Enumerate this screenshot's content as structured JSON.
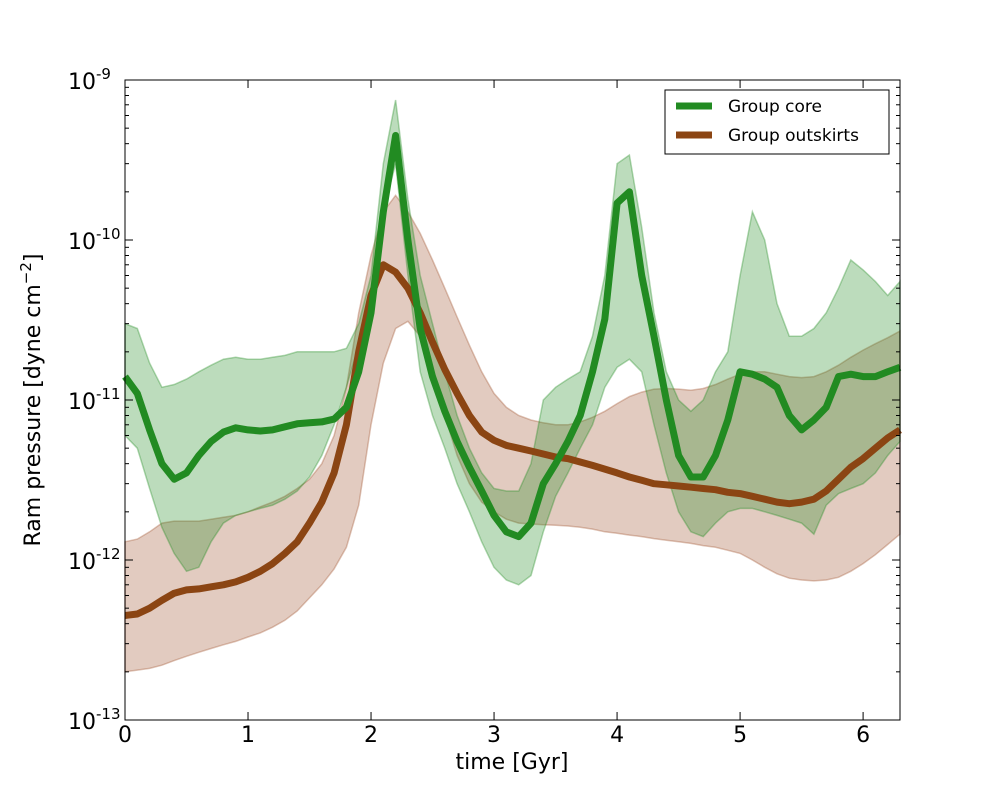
{
  "chart_data": {
    "type": "line",
    "title": "",
    "xlabel": "time [Gyr]",
    "ylabel_parts": {
      "main": "Ram pressure [dyne cm",
      "exp": "−2",
      "close": "]"
    },
    "xlim": [
      0,
      6.3
    ],
    "ylim_log10": [
      -13,
      -9
    ],
    "xticks": [
      0,
      1,
      2,
      3,
      4,
      5,
      6
    ],
    "xtick_labels": [
      "0",
      "1",
      "2",
      "3",
      "4",
      "5",
      "6"
    ],
    "yticks": [
      {
        "value_log10": -13,
        "base": "10",
        "exp": "-13"
      },
      {
        "value_log10": -12,
        "base": "10",
        "exp": "-12"
      },
      {
        "value_log10": -11,
        "base": "10",
        "exp": "-11"
      },
      {
        "value_log10": -10,
        "base": "10",
        "exp": "-10"
      },
      {
        "value_log10": -9,
        "base": "10",
        "exp": "-9"
      }
    ],
    "legend": {
      "placement": "top-right"
    },
    "series": [
      {
        "name": "Group core",
        "color": "#228B22",
        "band_color": "#228B22",
        "x": [
          0,
          0.1,
          0.2,
          0.3,
          0.4,
          0.5,
          0.6,
          0.7,
          0.8,
          0.9,
          1.0,
          1.1,
          1.2,
          1.3,
          1.4,
          1.5,
          1.6,
          1.7,
          1.8,
          1.9,
          2.0,
          2.1,
          2.2,
          2.3,
          2.4,
          2.5,
          2.6,
          2.7,
          2.8,
          2.9,
          3.0,
          3.1,
          3.2,
          3.3,
          3.4,
          3.5,
          3.6,
          3.7,
          3.8,
          3.9,
          4.0,
          4.1,
          4.2,
          4.3,
          4.4,
          4.5,
          4.6,
          4.7,
          4.8,
          4.9,
          5.0,
          5.1,
          5.2,
          5.3,
          5.4,
          5.5,
          5.6,
          5.7,
          5.8,
          5.9,
          6.0,
          6.1,
          6.2,
          6.3
        ],
        "mid": [
          1.4e-11,
          1.1e-11,
          6.5e-12,
          4e-12,
          3.2e-12,
          3.5e-12,
          4.5e-12,
          5.5e-12,
          6.3e-12,
          6.7e-12,
          6.5e-12,
          6.4e-12,
          6.5e-12,
          6.8e-12,
          7.1e-12,
          7.2e-12,
          7.3e-12,
          7.6e-12,
          9e-12,
          1.5e-11,
          3.5e-11,
          1.5e-10,
          4.5e-10,
          1e-10,
          2.8e-11,
          1.4e-11,
          8.5e-12,
          5.5e-12,
          3.8e-12,
          2.7e-12,
          1.9e-12,
          1.5e-12,
          1.4e-12,
          1.7e-12,
          3e-12,
          4e-12,
          5.5e-12,
          8e-12,
          1.5e-11,
          3.2e-11,
          1.7e-10,
          2e-10,
          6e-11,
          2.5e-11,
          1e-11,
          4.5e-12,
          3.3e-12,
          3.3e-12,
          4.5e-12,
          7.5e-12,
          1.5e-11,
          1.45e-11,
          1.35e-11,
          1.2e-11,
          8e-12,
          6.5e-12,
          7.5e-12,
          9e-12,
          1.4e-11,
          1.45e-11,
          1.4e-11,
          1.4e-11,
          1.5e-11,
          1.6e-11
        ],
        "low": [
          6e-12,
          5e-12,
          2.8e-12,
          1.6e-12,
          1.1e-12,
          8.5e-13,
          9e-13,
          1.3e-12,
          1.7e-12,
          1.9e-12,
          2e-12,
          2.1e-12,
          2.2e-12,
          2.4e-12,
          2.7e-12,
          3.3e-12,
          4.5e-12,
          7e-12,
          1.2e-11,
          2.2e-11,
          5e-11,
          1.5e-10,
          3e-10,
          6e-11,
          1.5e-11,
          8e-12,
          5e-12,
          3e-12,
          2e-12,
          1.3e-12,
          9e-13,
          7.5e-13,
          7e-13,
          8e-13,
          1.5e-12,
          2.5e-12,
          3.5e-12,
          5e-12,
          7e-12,
          1.2e-11,
          1.6e-11,
          1.8e-11,
          1.5e-11,
          7e-12,
          3.5e-12,
          2e-12,
          1.5e-12,
          1.4e-12,
          1.7e-12,
          2e-12,
          2.1e-12,
          2.1e-12,
          2e-12,
          1.9e-12,
          1.8e-12,
          1.7e-12,
          1.45e-12,
          2.2e-12,
          2.6e-12,
          2.8e-12,
          3e-12,
          3.5e-12,
          4.5e-12,
          5.5e-12
        ],
        "high": [
          3e-11,
          2.8e-11,
          1.7e-11,
          1.2e-11,
          1.25e-11,
          1.35e-11,
          1.5e-11,
          1.65e-11,
          1.8e-11,
          1.85e-11,
          1.8e-11,
          1.8e-11,
          1.85e-11,
          1.9e-11,
          2e-11,
          2e-11,
          2e-11,
          2e-11,
          2.1e-11,
          3e-11,
          6e-11,
          3e-10,
          7.5e-10,
          1.8e-10,
          6e-11,
          3e-11,
          1.5e-11,
          8e-12,
          5e-12,
          3.5e-12,
          2.8e-12,
          2.7e-12,
          2.7e-12,
          4e-12,
          1e-11,
          1.2e-11,
          1.35e-11,
          1.5e-11,
          2.5e-11,
          6e-11,
          3e-10,
          3.4e-10,
          1.2e-10,
          3.5e-11,
          1.5e-11,
          1e-11,
          8.5e-12,
          1e-11,
          1.5e-11,
          2e-11,
          6e-11,
          1.5e-10,
          1e-10,
          4e-11,
          2.5e-11,
          2.5e-11,
          2.8e-11,
          3.5e-11,
          5e-11,
          7.5e-11,
          6.5e-11,
          5.5e-11,
          4.5e-11,
          5.5e-11
        ]
      },
      {
        "name": "Group outskirts",
        "color": "#8B4513",
        "band_color": "#A0522D",
        "x": [
          0,
          0.1,
          0.2,
          0.3,
          0.4,
          0.5,
          0.6,
          0.7,
          0.8,
          0.9,
          1.0,
          1.1,
          1.2,
          1.3,
          1.4,
          1.5,
          1.6,
          1.7,
          1.8,
          1.9,
          2.0,
          2.1,
          2.2,
          2.3,
          2.4,
          2.5,
          2.6,
          2.7,
          2.8,
          2.9,
          3.0,
          3.1,
          3.2,
          3.3,
          3.4,
          3.5,
          3.6,
          3.7,
          3.8,
          3.9,
          4.0,
          4.1,
          4.2,
          4.3,
          4.4,
          4.5,
          4.6,
          4.7,
          4.8,
          4.9,
          5.0,
          5.1,
          5.2,
          5.3,
          5.4,
          5.5,
          5.6,
          5.7,
          5.8,
          5.9,
          6.0,
          6.1,
          6.2,
          6.3
        ],
        "mid": [
          4.5e-13,
          4.6e-13,
          5e-13,
          5.6e-13,
          6.2e-13,
          6.5e-13,
          6.6e-13,
          6.8e-13,
          7e-13,
          7.3e-13,
          7.8e-13,
          8.5e-13,
          9.5e-13,
          1.1e-12,
          1.3e-12,
          1.7e-12,
          2.3e-12,
          3.5e-12,
          7e-12,
          2e-11,
          4.5e-11,
          7e-11,
          6.3e-11,
          5e-11,
          3.5e-11,
          2.3e-11,
          1.55e-11,
          1.1e-11,
          8e-12,
          6.3e-12,
          5.6e-12,
          5.2e-12,
          5e-12,
          4.8e-12,
          4.6e-12,
          4.4e-12,
          4.3e-12,
          4.1e-12,
          3.9e-12,
          3.7e-12,
          3.5e-12,
          3.3e-12,
          3.15e-12,
          3e-12,
          2.95e-12,
          2.9e-12,
          2.85e-12,
          2.8e-12,
          2.75e-12,
          2.65e-12,
          2.6e-12,
          2.5e-12,
          2.4e-12,
          2.3e-12,
          2.25e-12,
          2.3e-12,
          2.4e-12,
          2.7e-12,
          3.2e-12,
          3.8e-12,
          4.3e-12,
          5e-12,
          5.8e-12,
          6.5e-12
        ],
        "low": [
          2e-13,
          2.05e-13,
          2.1e-13,
          2.2e-13,
          2.35e-13,
          2.5e-13,
          2.65e-13,
          2.8e-13,
          2.95e-13,
          3.1e-13,
          3.3e-13,
          3.5e-13,
          3.8e-13,
          4.2e-13,
          4.8e-13,
          5.8e-13,
          7e-13,
          8.8e-13,
          1.2e-12,
          2.2e-12,
          7e-12,
          1.7e-11,
          2.8e-11,
          3.1e-11,
          2.5e-11,
          1.5e-11,
          8e-12,
          4.5e-12,
          3e-12,
          2.3e-12,
          2e-12,
          1.8e-12,
          1.7e-12,
          1.68e-12,
          1.66e-12,
          1.65e-12,
          1.63e-12,
          1.6e-12,
          1.56e-12,
          1.5e-12,
          1.47e-12,
          1.43e-12,
          1.4e-12,
          1.36e-12,
          1.33e-12,
          1.3e-12,
          1.27e-12,
          1.23e-12,
          1.2e-12,
          1.15e-12,
          1.1e-12,
          1e-12,
          9e-13,
          8.2e-13,
          7.7e-13,
          7.5e-13,
          7.4e-13,
          7.5e-13,
          7.8e-13,
          8.5e-13,
          9.5e-13,
          1.08e-12,
          1.25e-12,
          1.45e-12
        ],
        "high": [
          1.3e-12,
          1.35e-12,
          1.5e-12,
          1.7e-12,
          1.75e-12,
          1.75e-12,
          1.75e-12,
          1.8e-12,
          1.85e-12,
          1.9e-12,
          2e-12,
          2.15e-12,
          2.3e-12,
          2.5e-12,
          2.8e-12,
          3.2e-12,
          4e-12,
          6e-12,
          1.2e-11,
          3.5e-11,
          8e-11,
          1.5e-10,
          1.9e-10,
          1.5e-10,
          1.1e-10,
          7.5e-11,
          5e-11,
          3.3e-11,
          2.2e-11,
          1.5e-11,
          1.1e-11,
          9e-12,
          8e-12,
          7.5e-12,
          7.2e-12,
          7e-12,
          7e-12,
          7.3e-12,
          7.8e-12,
          8.5e-12,
          9.5e-12,
          1.05e-11,
          1.12e-11,
          1.17e-11,
          1.18e-11,
          1.17e-11,
          1.15e-11,
          1.18e-11,
          1.25e-11,
          1.35e-11,
          1.45e-11,
          1.5e-11,
          1.5e-11,
          1.45e-11,
          1.4e-11,
          1.38e-11,
          1.4e-11,
          1.5e-11,
          1.65e-11,
          1.85e-11,
          2.05e-11,
          2.25e-11,
          2.45e-11,
          2.7e-11
        ]
      }
    ]
  }
}
